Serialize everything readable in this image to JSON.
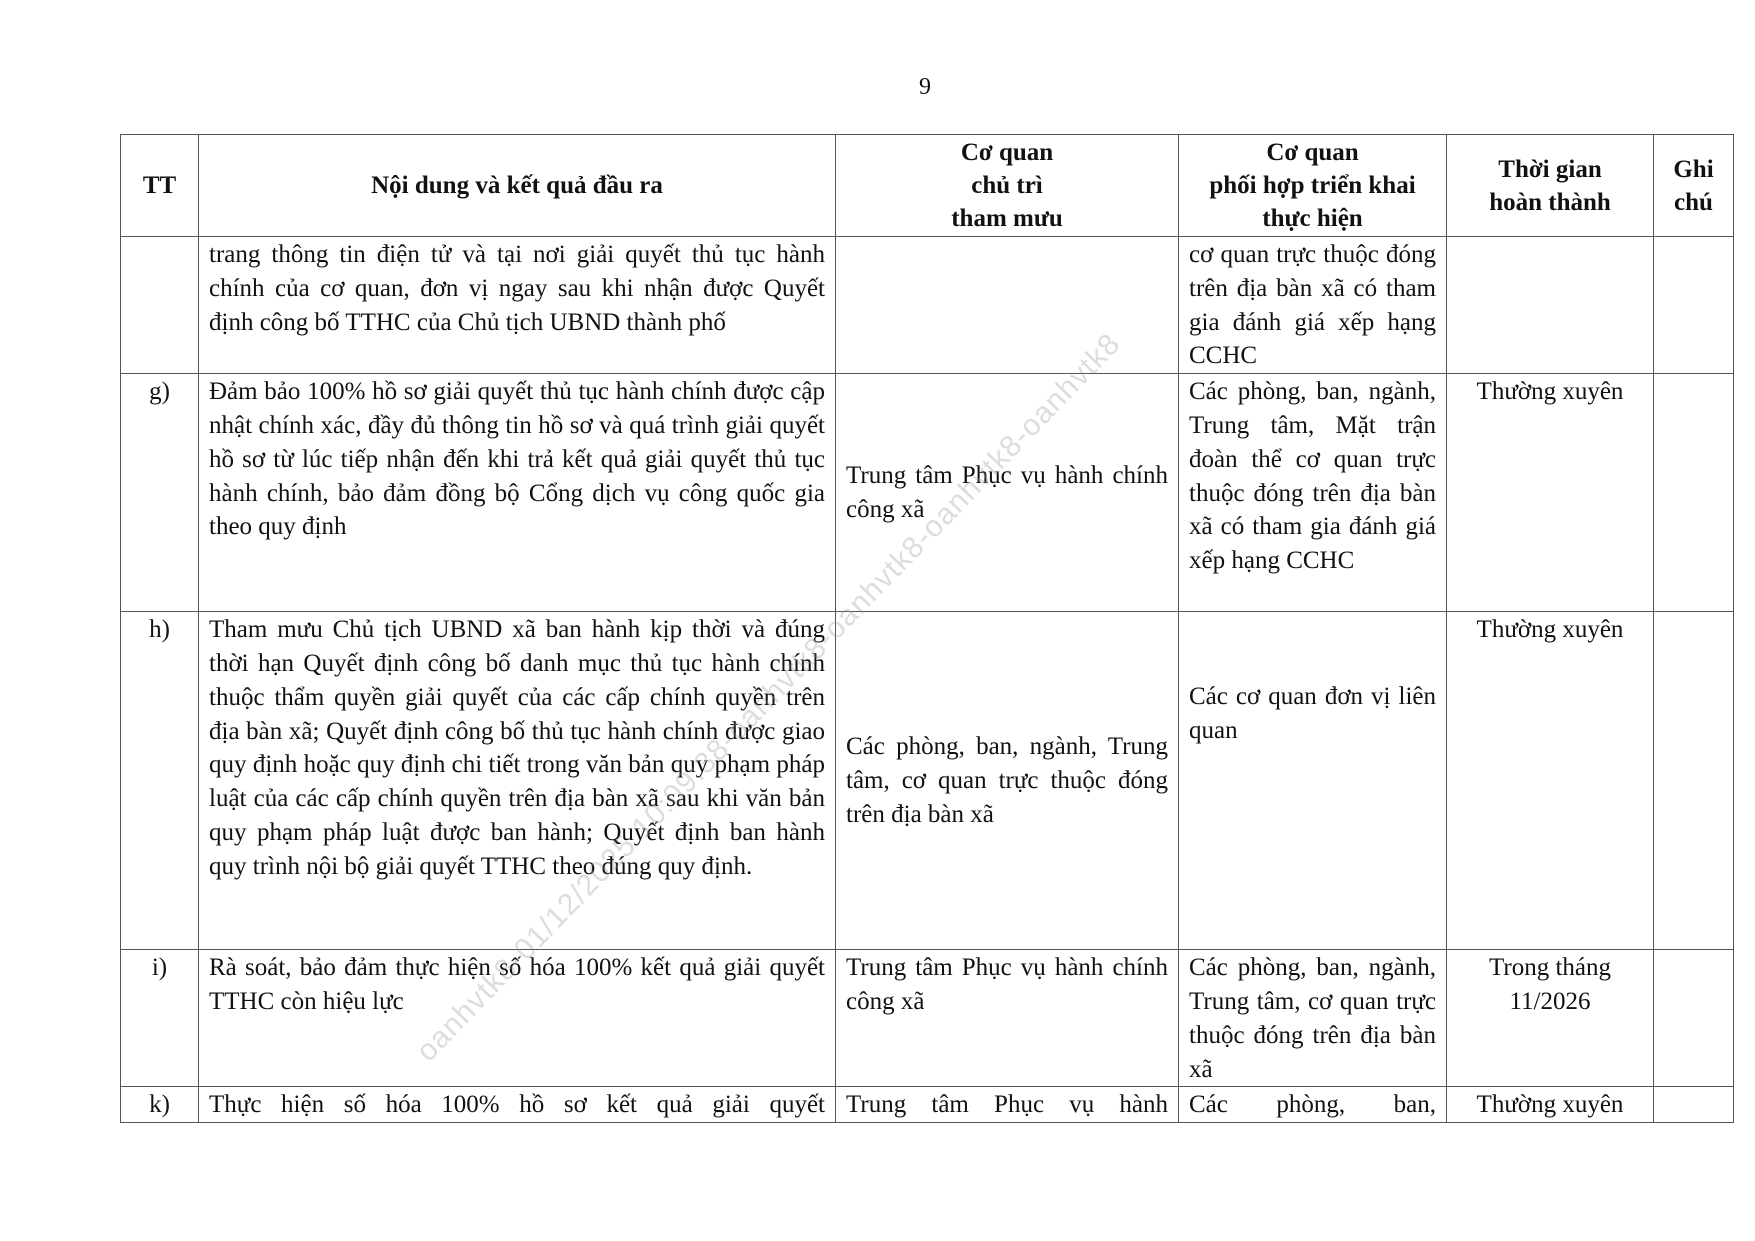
{
  "page_number": "9",
  "watermark": "oanhvtk8-01/12/2025 10:09:38-oanhvtk8-oanhvtk8-oanhvtk8-oanhvtk8",
  "table": {
    "headers": {
      "tt": "TT",
      "content": "Nội dung và kết quả đầu ra",
      "lead": [
        "Cơ quan",
        "chủ trì",
        "tham mưu"
      ],
      "coord": [
        "Cơ quan",
        "phối hợp triển khai",
        "thực hiện"
      ],
      "time": [
        "Thời gian",
        "hoàn thành"
      ],
      "note": [
        "Ghi",
        "chú"
      ]
    },
    "rows": [
      {
        "tt": "",
        "content": "trang thông tin điện tử và tại nơi giải quyết thủ tục hành chính của cơ quan, đơn vị ngay sau khi nhận được Quyết định công bố TTHC của Chủ tịch UBND thành phố",
        "lead": "",
        "coord": "cơ quan trực thuộc đóng trên địa bàn xã có tham gia đánh giá xếp hạng CCHC",
        "time": "",
        "note": ""
      },
      {
        "tt": "g)",
        "content": "Đảm bảo 100% hồ sơ giải quyết thủ tục hành chính được cập nhật chính xác, đầy đủ thông tin hồ sơ và quá trình giải quyết hồ sơ từ lúc tiếp nhận đến khi trả kết quả giải quyết thủ tục hành chính, bảo đảm đồng bộ Cổng dịch vụ công quốc gia theo quy định",
        "lead": "Trung tâm Phục vụ hành chính công xã",
        "coord": "Các phòng, ban, ngành, Trung tâm, Mặt trận đoàn thể cơ quan trực thuộc đóng trên địa bàn xã có tham gia đánh giá xếp hạng CCHC",
        "time": "Thường xuyên",
        "note": ""
      },
      {
        "tt": "h)",
        "content": "Tham mưu Chủ tịch UBND xã ban hành kịp thời và đúng thời hạn Quyết định công bố danh mục thủ tục hành chính thuộc thẩm quyền giải quyết của các cấp chính quyền trên địa bàn xã; Quyết định công bố thủ tục hành chính được giao quy định hoặc quy định chi tiết trong văn bản quy phạm pháp luật của các cấp chính quyền trên địa bàn xã sau khi văn bản quy phạm pháp luật được ban hành; Quyết định ban hành quy trình nội bộ giải quyết TTHC theo đúng quy định.",
        "lead": "Các phòng, ban, ngành, Trung tâm, cơ quan trực thuộc đóng trên địa bàn xã",
        "coord": "Các cơ quan đơn vị liên quan",
        "time": "Thường xuyên",
        "note": ""
      },
      {
        "tt": "i)",
        "content": "Rà soát, bảo đảm thực hiện số hóa 100% kết quả giải quyết TTHC còn hiệu lực",
        "lead": "Trung tâm Phục vụ hành chính công xã",
        "coord": "Các phòng, ban, ngành, Trung tâm, cơ quan trực thuộc đóng trên địa bàn xã",
        "time": "Trong tháng 11/2026",
        "note": ""
      },
      {
        "tt": "k)",
        "content": "Thực hiện số hóa 100% hồ sơ kết quả giải quyết",
        "lead": "Trung tâm Phục vụ hành",
        "coord": "Các phòng, ban,",
        "time": "Thường xuyên",
        "note": ""
      }
    ]
  }
}
